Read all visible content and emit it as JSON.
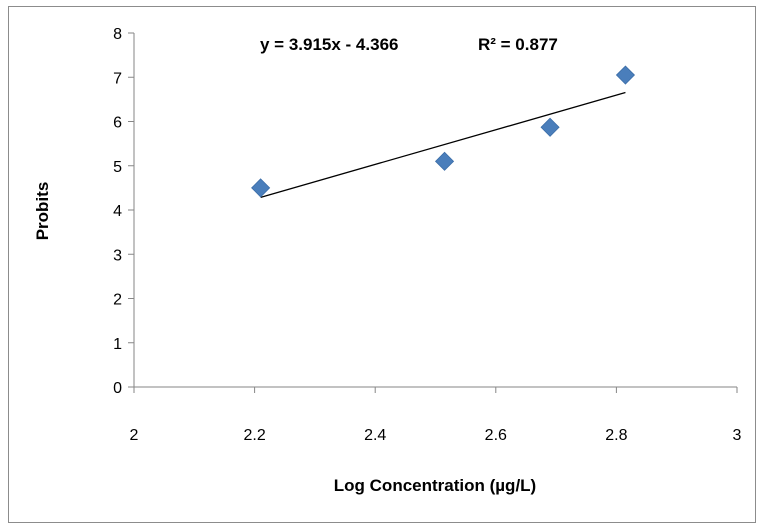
{
  "chart_data": {
    "type": "scatter",
    "title": "",
    "xlabel": "Log Concentration (µg/L)",
    "ylabel": "Probits",
    "xlim": [
      2,
      3
    ],
    "ylim": [
      0,
      8
    ],
    "x_ticks": [
      "2",
      "2.2",
      "2.4",
      "2.6",
      "2.8",
      "3"
    ],
    "y_ticks": [
      "0",
      "1",
      "2",
      "3",
      "4",
      "5",
      "6",
      "7",
      "8"
    ],
    "grid": false,
    "legend": "none",
    "marker": "diamond",
    "marker_color": "#4a7ebb",
    "trendline_color": "#000000",
    "points": [
      {
        "x": 2.21,
        "y": 4.5
      },
      {
        "x": 2.515,
        "y": 5.1
      },
      {
        "x": 2.69,
        "y": 5.87
      },
      {
        "x": 2.815,
        "y": 7.05
      }
    ],
    "trendline": {
      "slope": 3.915,
      "intercept": -4.366,
      "x_range": [
        2.21,
        2.815
      ]
    },
    "annotations": {
      "equation": "y = 3.915x - 4.366",
      "r_squared": "R² = 0.877"
    }
  }
}
